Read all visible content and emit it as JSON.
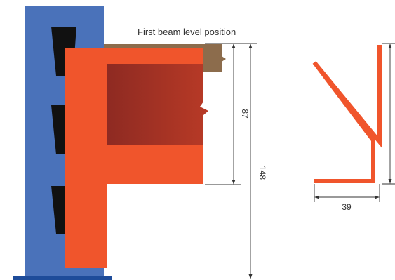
{
  "diagram": {
    "label": "First beam level position",
    "dimensions": {
      "beam_height": "87",
      "total_height": "148",
      "profile_width": "39"
    }
  },
  "colors": {
    "upright": "#4a72ba",
    "upright_base": "#1e4c9a",
    "slot": "#111111",
    "bracket": "#f0552c",
    "beam_face": "#a83226",
    "beam_top": "#8c6c4c",
    "dimension_line": "#333333"
  }
}
